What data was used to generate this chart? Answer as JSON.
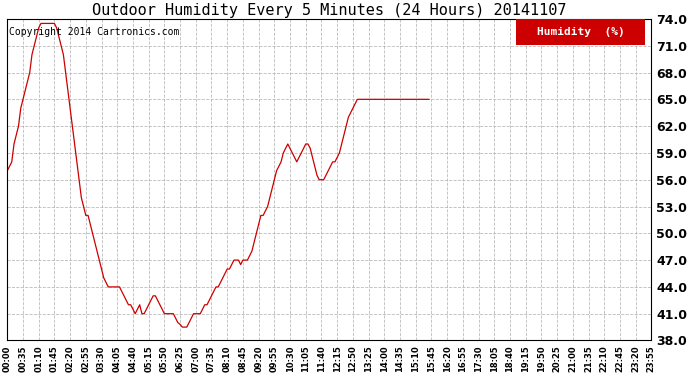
{
  "title": "Outdoor Humidity Every 5 Minutes (24 Hours) 20141107",
  "copyright": "Copyright 2014 Cartronics.com",
  "legend_label": "Humidity  (%)",
  "line_color": "#cc0000",
  "background_color": "#ffffff",
  "grid_color": "#aaaaaa",
  "ylim": [
    38.0,
    74.0
  ],
  "yticks": [
    38.0,
    41.0,
    44.0,
    47.0,
    50.0,
    53.0,
    56.0,
    59.0,
    62.0,
    65.0,
    68.0,
    71.0,
    74.0
  ],
  "xtick_labels": [
    "00:00",
    "00:35",
    "01:10",
    "01:45",
    "02:20",
    "02:55",
    "03:30",
    "04:05",
    "04:40",
    "05:15",
    "05:50",
    "06:25",
    "07:00",
    "07:35",
    "08:10",
    "08:45",
    "09:20",
    "09:55",
    "10:30",
    "11:05",
    "11:40",
    "12:15",
    "12:50",
    "13:25",
    "14:00",
    "14:35",
    "15:10",
    "15:45",
    "16:20",
    "16:55",
    "17:30",
    "18:05",
    "18:40",
    "19:15",
    "19:50",
    "20:25",
    "21:00",
    "21:35",
    "22:10",
    "22:45",
    "23:20",
    "23:55"
  ],
  "humidity_values": [
    57.0,
    57.5,
    58.0,
    60.0,
    61.0,
    62.0,
    64.0,
    65.0,
    66.0,
    67.0,
    68.0,
    70.0,
    71.0,
    72.0,
    73.0,
    73.5,
    73.5,
    73.5,
    73.5,
    73.5,
    73.5,
    73.5,
    73.0,
    72.0,
    71.0,
    70.0,
    68.0,
    66.0,
    64.0,
    62.0,
    60.0,
    58.0,
    56.0,
    54.0,
    53.0,
    52.0,
    52.0,
    51.0,
    50.0,
    49.0,
    48.0,
    47.0,
    46.0,
    45.0,
    44.5,
    44.0,
    44.0,
    44.0,
    44.0,
    44.0,
    44.0,
    43.5,
    43.0,
    42.5,
    42.0,
    42.0,
    41.5,
    41.0,
    41.5,
    42.0,
    41.0,
    41.0,
    41.5,
    42.0,
    42.5,
    43.0,
    43.0,
    42.5,
    42.0,
    41.5,
    41.0,
    41.0,
    41.0,
    41.0,
    41.0,
    40.5,
    40.0,
    39.8,
    39.5,
    39.5,
    39.5,
    40.0,
    40.5,
    41.0,
    41.0,
    41.0,
    41.0,
    41.5,
    42.0,
    42.0,
    42.5,
    43.0,
    43.5,
    44.0,
    44.0,
    44.5,
    45.0,
    45.5,
    46.0,
    46.0,
    46.5,
    47.0,
    47.0,
    47.0,
    46.5,
    47.0,
    47.0,
    47.0,
    47.5,
    48.0,
    49.0,
    50.0,
    51.0,
    52.0,
    52.0,
    52.5,
    53.0,
    54.0,
    55.0,
    56.0,
    57.0,
    57.5,
    58.0,
    59.0,
    59.5,
    60.0,
    59.5,
    59.0,
    58.5,
    58.0,
    58.5,
    59.0,
    59.5,
    60.0,
    60.0,
    59.5,
    58.5,
    57.5,
    56.5,
    56.0,
    56.0,
    56.0,
    56.5,
    57.0,
    57.5,
    58.0,
    58.0,
    58.5,
    59.0,
    60.0,
    61.0,
    62.0,
    63.0,
    63.5,
    64.0,
    64.5,
    65.0,
    65.0,
    65.0,
    65.0,
    65.0,
    65.0,
    65.0,
    65.0,
    65.0,
    65.0,
    65.0,
    65.0,
    65.0,
    65.0,
    65.0,
    65.0,
    65.0,
    65.0,
    65.0,
    65.0,
    65.0,
    65.0,
    65.0,
    65.0,
    65.0,
    65.0,
    65.0,
    65.0,
    65.0,
    65.0,
    65.0,
    65.0,
    65.0
  ],
  "title_fontsize": 11,
  "copyright_fontsize": 7,
  "ytick_fontsize": 9,
  "xtick_fontsize": 6,
  "legend_fontsize": 8
}
